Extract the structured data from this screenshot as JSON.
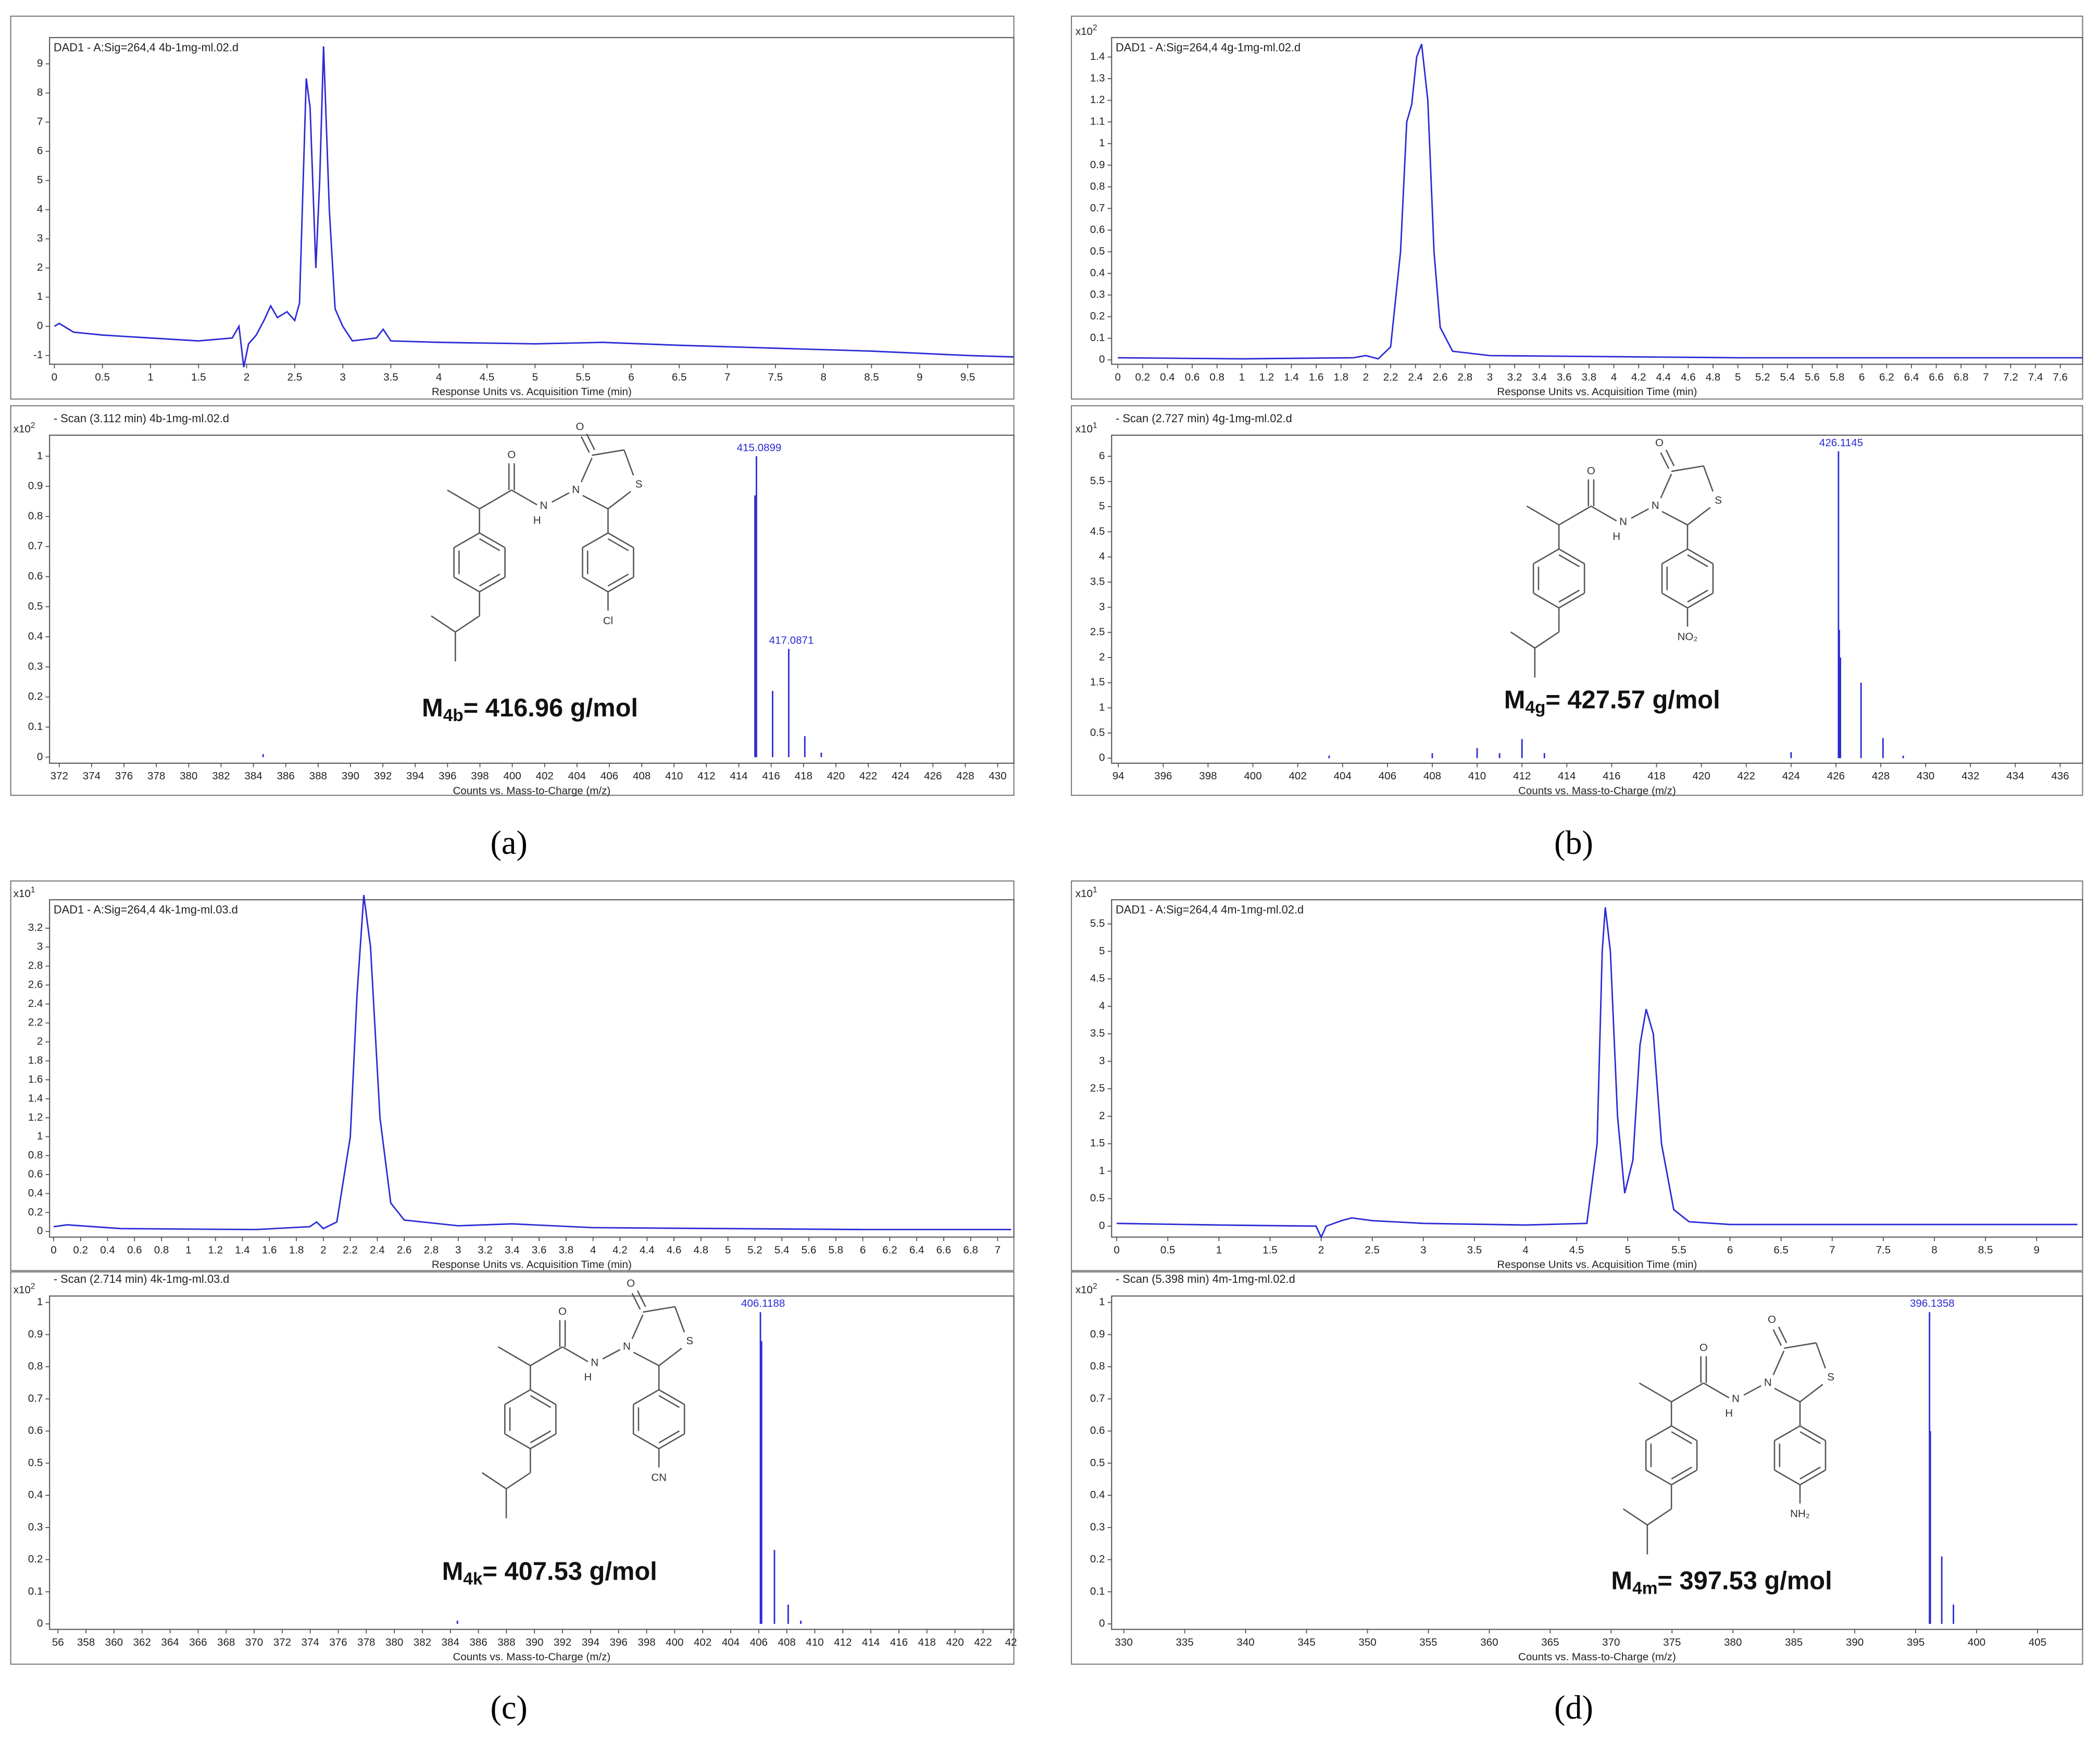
{
  "chart_data": [
    {
      "type": "line",
      "title": "DAD1 - A:Sig=264,4 4b-1mg-ml.02.d",
      "xlabel": "Response Units vs. Acquisition Time (min)",
      "color": "#2b2bd6",
      "x": [
        0,
        0.05,
        0.2,
        0.5,
        1.0,
        1.5,
        1.85,
        1.92,
        1.97,
        2.02,
        2.1,
        2.18,
        2.25,
        2.32,
        2.42,
        2.5,
        2.55,
        2.62,
        2.66,
        2.72,
        2.76,
        2.8,
        2.86,
        2.92,
        3.0,
        3.1,
        3.35,
        3.42,
        3.5,
        4,
        5,
        5.7,
        6.5,
        7.5,
        8.5,
        9.5,
        9.98
      ],
      "values": [
        0.0,
        0.1,
        -0.2,
        -0.3,
        -0.4,
        -0.5,
        -0.4,
        0.0,
        -1.4,
        -0.6,
        -0.3,
        0.2,
        0.7,
        0.3,
        0.5,
        0.2,
        0.8,
        8.5,
        7.5,
        2.0,
        5.0,
        9.6,
        4.0,
        0.6,
        0.0,
        -0.5,
        -0.4,
        -0.1,
        -0.5,
        -0.55,
        -0.6,
        -0.55,
        -0.65,
        -0.75,
        -0.85,
        -1.0,
        -1.05
      ],
      "xlim": [
        -0.05,
        9.98
      ],
      "ylim": [
        -1.3,
        9.9
      ],
      "xticks": [
        0,
        0.5,
        1,
        1.5,
        2,
        2.5,
        3,
        3.5,
        4,
        4.5,
        5,
        5.5,
        6,
        6.5,
        7,
        7.5,
        8,
        8.5,
        9,
        9.5
      ],
      "yticks": [
        -1,
        0,
        1,
        2,
        3,
        4,
        5,
        6,
        7,
        8,
        9
      ]
    },
    {
      "type": "bar",
      "title": "- Scan (3.112 min) 4b-1mg-ml.02.d",
      "xlabel": "Counts vs. Mass-to-Charge (m/z)",
      "color": "#2b2bd6",
      "y_multiplier": {
        "base": "x10",
        "exponent": "2"
      },
      "x": [
        384.6,
        415.0,
        415.0899,
        416.09,
        417.0871,
        418.08,
        419.1
      ],
      "values": [
        0.01,
        0.87,
        1.0,
        0.22,
        0.36,
        0.07,
        0.015
      ],
      "annotations": [
        {
          "x": 415.0899,
          "label": "415.0899"
        },
        {
          "x": 417.0871,
          "label": "417.0871"
        }
      ],
      "xlim": [
        371.4,
        431
      ],
      "ylim": [
        -0.02,
        1.07
      ],
      "xticks": [
        372,
        374,
        376,
        378,
        380,
        382,
        384,
        386,
        388,
        390,
        392,
        394,
        396,
        398,
        400,
        402,
        404,
        406,
        408,
        410,
        412,
        414,
        416,
        418,
        420,
        422,
        424,
        426,
        428,
        430
      ],
      "yticks": [
        0,
        0.1,
        0.2,
        0.3,
        0.4,
        0.5,
        0.6,
        0.7,
        0.8,
        0.9,
        1
      ],
      "compound": {
        "symbol": "M",
        "subscript": "4b",
        "text": "= 416.96 g/mol"
      },
      "structure": {
        "atoms": [
          "O",
          "N",
          "H",
          "N",
          "O",
          "S"
        ],
        "substituent": "Cl"
      }
    },
    {
      "type": "line",
      "title": "DAD1 - A:Sig=264,4 4g-1mg-ml.02.d",
      "xlabel": "Response Units vs. Acquisition Time (min)",
      "color": "#2b2bd6",
      "y_multiplier": {
        "base": "x10",
        "exponent": "2"
      },
      "x": [
        0,
        1,
        1.9,
        2.0,
        2.1,
        2.2,
        2.28,
        2.33,
        2.37,
        2.41,
        2.45,
        2.5,
        2.55,
        2.6,
        2.7,
        3,
        4,
        5,
        6,
        7.78
      ],
      "values": [
        0.01,
        0.005,
        0.01,
        0.02,
        0.005,
        0.06,
        0.5,
        1.1,
        1.18,
        1.4,
        1.46,
        1.2,
        0.5,
        0.15,
        0.04,
        0.02,
        0.015,
        0.01,
        0.01,
        0.01
      ],
      "xlim": [
        -0.05,
        7.78
      ],
      "ylim": [
        -0.02,
        1.49
      ],
      "xticks": [
        0,
        0.2,
        0.4,
        0.6,
        0.8,
        1,
        1.2,
        1.4,
        1.6,
        1.8,
        2,
        2.2,
        2.4,
        2.6,
        2.8,
        3,
        3.2,
        3.4,
        3.6,
        3.8,
        4,
        4.2,
        4.4,
        4.6,
        4.8,
        5,
        5.2,
        5.4,
        5.6,
        5.8,
        6,
        6.2,
        6.4,
        6.6,
        6.8,
        7,
        7.2,
        7.4,
        7.6
      ],
      "yticks": [
        0,
        0.1,
        0.2,
        0.3,
        0.4,
        0.5,
        0.6,
        0.7,
        0.8,
        0.9,
        1,
        1.1,
        1.2,
        1.3,
        1.4
      ]
    },
    {
      "type": "bar",
      "title": "- Scan (2.727 min) 4g-1mg-ml.02.d",
      "xlabel": "Counts vs. Mass-to-Charge (m/z)",
      "color": "#2b2bd6",
      "y_multiplier": {
        "base": "x10",
        "exponent": "1"
      },
      "x": [
        403.4,
        408,
        410,
        411,
        412,
        413,
        424,
        426.1145,
        426.15,
        426.2,
        427.12,
        428.1,
        429
      ],
      "values": [
        0.05,
        0.1,
        0.2,
        0.1,
        0.38,
        0.1,
        0.12,
        6.1,
        2.55,
        2.0,
        1.5,
        0.4,
        0.05
      ],
      "annotations": [
        {
          "x": 426.1145,
          "label": "426.1145"
        }
      ],
      "xlim": [
        393.7,
        437
      ],
      "ylim": [
        -0.1,
        6.42
      ],
      "xticks": [
        {
          "value": 394,
          "label": "94"
        },
        396,
        398,
        400,
        402,
        404,
        406,
        408,
        410,
        412,
        414,
        416,
        418,
        420,
        422,
        424,
        426,
        428,
        430,
        432,
        434,
        436
      ],
      "yticks": [
        0,
        0.5,
        1,
        1.5,
        2,
        2.5,
        3,
        3.5,
        4,
        4.5,
        5,
        5.5,
        6
      ],
      "compound": {
        "symbol": "M",
        "subscript": "4g",
        "text": "= 427.57 g/mol"
      },
      "structure": {
        "atoms": [
          "O",
          "N",
          "H",
          "N",
          "O",
          "S"
        ],
        "substituent": "NO₂"
      }
    },
    {
      "type": "line",
      "title": "DAD1 - A:Sig=264,4 4k-1mg-ml.03.d",
      "xlabel": "Response Units vs. Acquisition Time (min)",
      "color": "#2b2bd6",
      "y_multiplier": {
        "base": "x10",
        "exponent": "1"
      },
      "x": [
        0,
        0.1,
        0.5,
        1.5,
        1.9,
        1.95,
        2.0,
        2.1,
        2.2,
        2.25,
        2.3,
        2.35,
        2.42,
        2.5,
        2.6,
        3,
        3.4,
        4,
        5,
        6,
        7.1
      ],
      "values": [
        0.05,
        0.07,
        0.03,
        0.02,
        0.05,
        0.1,
        0.03,
        0.1,
        1.0,
        2.5,
        3.55,
        3.0,
        1.2,
        0.3,
        0.12,
        0.06,
        0.08,
        0.04,
        0.03,
        0.02,
        0.02
      ],
      "xlim": [
        -0.03,
        7.12
      ],
      "ylim": [
        -0.06,
        3.5
      ],
      "xticks": [
        0,
        0.2,
        0.4,
        0.6,
        0.8,
        1,
        1.2,
        1.4,
        1.6,
        1.8,
        2,
        2.2,
        2.4,
        2.6,
        2.8,
        3,
        3.2,
        3.4,
        3.6,
        3.8,
        4,
        4.2,
        4.4,
        4.6,
        4.8,
        5,
        5.2,
        5.4,
        5.6,
        5.8,
        6,
        6.2,
        6.4,
        6.6,
        6.8,
        7
      ],
      "yticks": [
        0,
        0.2,
        0.4,
        0.6,
        0.8,
        1,
        1.2,
        1.4,
        1.6,
        1.8,
        2,
        2.2,
        2.4,
        2.6,
        2.8,
        3,
        3.2
      ]
    },
    {
      "type": "bar",
      "title": "- Scan (2.714 min) 4k-1mg-ml.03.d",
      "xlabel": "Counts vs. Mass-to-Charge (m/z)",
      "color": "#2b2bd6",
      "y_multiplier": {
        "base": "x10",
        "exponent": "2"
      },
      "x": [
        384.5,
        406.1188,
        406.2,
        407.12,
        408.1,
        409
      ],
      "values": [
        0.01,
        0.97,
        0.88,
        0.23,
        0.06,
        0.01
      ],
      "annotations": [
        {
          "x": 406.1188,
          "label": "406.1188"
        }
      ],
      "xlim": [
        355.4,
        424.2
      ],
      "ylim": [
        -0.017,
        1.02
      ],
      "xticks": [
        {
          "value": 356,
          "label": "56"
        },
        358,
        360,
        362,
        364,
        366,
        368,
        370,
        372,
        374,
        376,
        378,
        380,
        382,
        384,
        386,
        388,
        390,
        392,
        394,
        396,
        398,
        400,
        402,
        404,
        406,
        408,
        410,
        412,
        414,
        416,
        418,
        420,
        422,
        {
          "value": 424,
          "label": "42"
        }
      ],
      "yticks": [
        0,
        0.1,
        0.2,
        0.3,
        0.4,
        0.5,
        0.6,
        0.7,
        0.8,
        0.9,
        1
      ],
      "compound": {
        "symbol": "M",
        "subscript": "4k",
        "text": "= 407.53 g/mol"
      },
      "structure": {
        "atoms": [
          "O",
          "N",
          "H",
          "N",
          "O",
          "S"
        ],
        "substituent": "CN"
      }
    },
    {
      "type": "line",
      "title": "DAD1 - A:Sig=264,4 4m-1mg-ml.02.d",
      "xlabel": "Response Units vs. Acquisition Time (min)",
      "color": "#2b2bd6",
      "y_multiplier": {
        "base": "x10",
        "exponent": "1"
      },
      "x": [
        0,
        1,
        1.95,
        2.0,
        2.05,
        2.2,
        2.3,
        2.5,
        3,
        4,
        4.6,
        4.7,
        4.75,
        4.78,
        4.83,
        4.9,
        4.97,
        5.05,
        5.12,
        5.18,
        5.25,
        5.33,
        5.45,
        5.6,
        6,
        9.4
      ],
      "values": [
        0.05,
        0.02,
        0.0,
        -0.2,
        0.0,
        0.1,
        0.15,
        0.1,
        0.05,
        0.02,
        0.05,
        1.5,
        5.0,
        5.8,
        5.0,
        2.0,
        0.6,
        1.2,
        3.3,
        3.95,
        3.5,
        1.5,
        0.3,
        0.08,
        0.03,
        0.03
      ],
      "xlim": [
        -0.05,
        9.45
      ],
      "ylim": [
        -0.2,
        5.94
      ],
      "xticks": [
        0,
        0.5,
        1,
        1.5,
        2,
        2.5,
        3,
        3.5,
        4,
        4.5,
        5,
        5.5,
        6,
        6.5,
        7,
        7.5,
        8,
        8.5,
        9
      ],
      "yticks": [
        0,
        0.5,
        1,
        1.5,
        2,
        2.5,
        3,
        3.5,
        4,
        4.5,
        5,
        5.5
      ]
    },
    {
      "type": "bar",
      "title": "- Scan (5.398 min) 4m-1mg-ml.02.d",
      "xlabel": "Counts vs. Mass-to-Charge (m/z)",
      "color": "#2b2bd6",
      "y_multiplier": {
        "base": "x10",
        "exponent": "2"
      },
      "x": [
        396.1358,
        396.2,
        397.14,
        398.1
      ],
      "values": [
        0.97,
        0.6,
        0.21,
        0.06
      ],
      "annotations": [
        {
          "x": 396.1358,
          "label": "396.1358"
        }
      ],
      "xlim": [
        329.0,
        408.7
      ],
      "ylim": [
        -0.017,
        1.02
      ],
      "xticks": [
        330,
        335,
        340,
        345,
        350,
        355,
        360,
        365,
        370,
        375,
        380,
        385,
        390,
        395,
        400,
        405
      ],
      "yticks": [
        0,
        0.1,
        0.2,
        0.3,
        0.4,
        0.5,
        0.6,
        0.7,
        0.8,
        0.9,
        1
      ],
      "compound": {
        "symbol": "M",
        "subscript": "4m",
        "text": "= 397.53 g/mol"
      },
      "structure": {
        "atoms": [
          "O",
          "N",
          "H",
          "N",
          "O",
          "S"
        ],
        "substituent": "NH₂"
      }
    }
  ],
  "panels": [
    {
      "label": "(a)"
    },
    {
      "label": "(b)"
    },
    {
      "label": "(c)"
    },
    {
      "label": "(d)"
    }
  ]
}
